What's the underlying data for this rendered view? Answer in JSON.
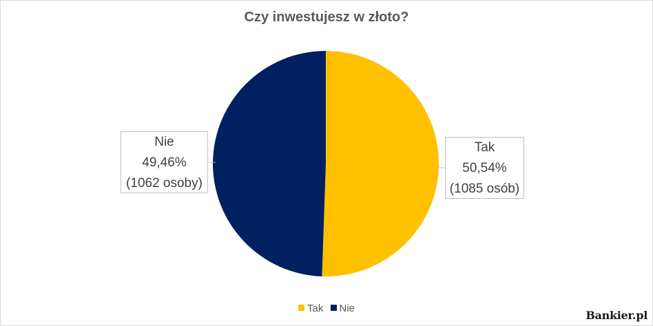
{
  "colors": {
    "tak": "#FFC000",
    "nie": "#002060"
  },
  "chart_data": {
    "type": "pie",
    "title": "Czy inwestujesz w złoto?",
    "legend_position": "bottom",
    "slices": [
      {
        "name": "Tak",
        "percent": 50.54,
        "percent_label": "50,54%",
        "count_label": "(1085 osób)"
      },
      {
        "name": "Nie",
        "percent": 49.46,
        "percent_label": "49,46%",
        "count_label": "(1062 osoby)"
      }
    ]
  },
  "watermark": "Bankier.pl"
}
